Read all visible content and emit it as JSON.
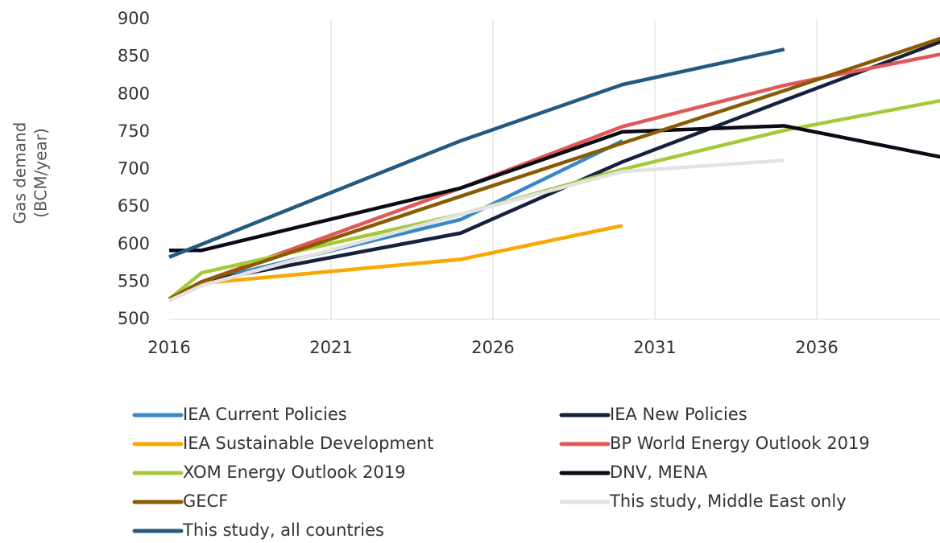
{
  "chart_data": {
    "type": "line",
    "y_label": [
      "Gas demand",
      "(BCM/year)"
    ],
    "x": [
      2016,
      2017,
      2025,
      2030,
      2035,
      2040
    ],
    "xlim": [
      2016,
      2040
    ],
    "xticks": [
      2016,
      2021,
      2026,
      2031,
      2036
    ],
    "ylim": [
      500,
      900
    ],
    "yticks": [
      500,
      550,
      600,
      650,
      700,
      750,
      800,
      850,
      900
    ],
    "grid": "vertical",
    "series": [
      {
        "name": "IEA Current Policies",
        "color": "#3a87c8",
        "values": [
          527,
          550,
          633,
          738,
          null,
          null
        ]
      },
      {
        "name": "IEA New Policies",
        "color": "#16213f",
        "values": [
          527,
          550,
          615,
          710,
          792,
          873
        ]
      },
      {
        "name": "IEA Sustainable Development",
        "color": "#f9a800",
        "values": [
          527,
          548,
          580,
          625,
          null,
          null
        ]
      },
      {
        "name": "BP World Energy Outlook 2019",
        "color": "#e05858",
        "values": [
          527,
          550,
          675,
          757,
          812,
          855
        ]
      },
      {
        "name": "XOM Energy Outlook 2019",
        "color": "#a6c93a",
        "values": [
          527,
          562,
          640,
          700,
          752,
          793
        ]
      },
      {
        "name": "DNV, MENA",
        "color": "#0b0b16",
        "values": [
          592,
          592,
          675,
          750,
          758,
          715
        ]
      },
      {
        "name": "GECF",
        "color": "#8a5a05",
        "values": [
          527,
          550,
          664,
          735,
          805,
          877
        ]
      },
      {
        "name": "This study, Middle East only",
        "color": "#e2e2e2",
        "values": [
          525,
          545,
          640,
          697,
          712,
          null
        ]
      },
      {
        "name": "This study, all countries",
        "color": "#235a80",
        "values": [
          583,
          600,
          738,
          813,
          860,
          null
        ]
      }
    ]
  }
}
